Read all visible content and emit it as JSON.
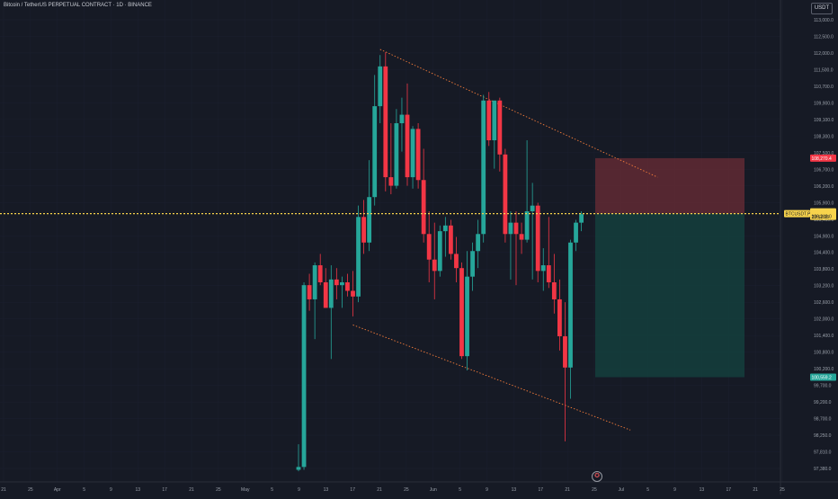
{
  "header": {
    "title": "Bitcoin / TetherUS PERPETUAL CONTRACT · 1D · BINANCE",
    "currency": "USDT"
  },
  "price_tags": {
    "stop": "108,270.4",
    "ticker": "BTCUSDT.P",
    "current_price": "106,318.0",
    "countdown": "23:52:03",
    "target": "100,559.2"
  },
  "colors": {
    "background": "#161a25",
    "up": "#26a69a",
    "down": "#f23645",
    "trendline": "#f57c3a",
    "price_line": "#f7d34c",
    "stop_zone": "#6b2c36",
    "target_zone": "#14403d"
  },
  "chart_data": {
    "type": "candlestick",
    "timeframe": "1D",
    "y_axis": {
      "ylim": [
        97000,
        113300
      ],
      "tick_labels": [
        "113,000.0",
        "112,500.0",
        "112,000.0",
        "111,500.0",
        "110,700.0",
        "109,900.0",
        "109,100.0",
        "108,300.0",
        "107,500.0",
        "106,700.0",
        "106,200.0",
        "105,900.0",
        "105,400.0",
        "104,900.0",
        "104,400.0",
        "103,800.0",
        "103,200.0",
        "102,600.0",
        "102,000.0",
        "101,400.0",
        "100,800.0",
        "100,200.0",
        "99,700.0",
        "99,200.0",
        "98,700.0",
        "98,250.0",
        "97,810.0",
        "97,380.0"
      ]
    },
    "x_axis": {
      "tick_labels": [
        "21",
        "25",
        "Apr",
        "5",
        "9",
        "13",
        "17",
        "21",
        "25",
        "May",
        "5",
        "9",
        "13",
        "17",
        "21",
        "25",
        "Jun",
        "5",
        "9",
        "13",
        "17",
        "21",
        "25",
        "Jul",
        "5",
        "9",
        "13",
        "17",
        "21",
        "25"
      ]
    },
    "candles": [
      {
        "o": 97300,
        "h": 98200,
        "l": 97250,
        "c": 97400
      },
      {
        "o": 97400,
        "h": 103900,
        "l": 97300,
        "c": 103800
      },
      {
        "o": 103800,
        "h": 104200,
        "l": 102900,
        "c": 103300
      },
      {
        "o": 103300,
        "h": 104600,
        "l": 101900,
        "c": 104500
      },
      {
        "o": 104500,
        "h": 104900,
        "l": 103800,
        "c": 103900
      },
      {
        "o": 103900,
        "h": 104400,
        "l": 103000,
        "c": 103000
      },
      {
        "o": 103000,
        "h": 104500,
        "l": 101200,
        "c": 104000
      },
      {
        "o": 104000,
        "h": 104400,
        "l": 103300,
        "c": 103800
      },
      {
        "o": 103800,
        "h": 104100,
        "l": 103000,
        "c": 103900
      },
      {
        "o": 103900,
        "h": 104200,
        "l": 103400,
        "c": 103600
      },
      {
        "o": 103600,
        "h": 104300,
        "l": 102700,
        "c": 103400
      },
      {
        "o": 103400,
        "h": 106600,
        "l": 103200,
        "c": 106200
      },
      {
        "o": 106200,
        "h": 106800,
        "l": 104900,
        "c": 105300
      },
      {
        "o": 105300,
        "h": 108200,
        "l": 105000,
        "c": 106900
      },
      {
        "o": 106900,
        "h": 111200,
        "l": 106600,
        "c": 110100
      },
      {
        "o": 110100,
        "h": 111900,
        "l": 109500,
        "c": 111500
      },
      {
        "o": 111500,
        "h": 112000,
        "l": 107100,
        "c": 107600
      },
      {
        "o": 107600,
        "h": 109500,
        "l": 107000,
        "c": 107300
      },
      {
        "o": 107300,
        "h": 110000,
        "l": 107200,
        "c": 109500
      },
      {
        "o": 109500,
        "h": 110400,
        "l": 108500,
        "c": 109800
      },
      {
        "o": 109800,
        "h": 110900,
        "l": 107300,
        "c": 107600
      },
      {
        "o": 107600,
        "h": 109400,
        "l": 107200,
        "c": 109300
      },
      {
        "o": 109300,
        "h": 109500,
        "l": 107200,
        "c": 107500
      },
      {
        "o": 107500,
        "h": 108600,
        "l": 105300,
        "c": 105600
      },
      {
        "o": 105600,
        "h": 106400,
        "l": 103900,
        "c": 104700
      },
      {
        "o": 104700,
        "h": 106000,
        "l": 103300,
        "c": 104300
      },
      {
        "o": 104300,
        "h": 105900,
        "l": 104100,
        "c": 105700
      },
      {
        "o": 105700,
        "h": 106200,
        "l": 104800,
        "c": 105900
      },
      {
        "o": 105900,
        "h": 106100,
        "l": 104700,
        "c": 104900
      },
      {
        "o": 104900,
        "h": 105500,
        "l": 103900,
        "c": 104400
      },
      {
        "o": 104400,
        "h": 104600,
        "l": 101200,
        "c": 101300
      },
      {
        "o": 101300,
        "h": 105000,
        "l": 100800,
        "c": 104100
      },
      {
        "o": 104100,
        "h": 105300,
        "l": 103600,
        "c": 105000
      },
      {
        "o": 105000,
        "h": 106100,
        "l": 104400,
        "c": 105600
      },
      {
        "o": 105600,
        "h": 110500,
        "l": 105300,
        "c": 110300
      },
      {
        "o": 110300,
        "h": 110600,
        "l": 108700,
        "c": 108900
      },
      {
        "o": 108900,
        "h": 110200,
        "l": 107900,
        "c": 110300
      },
      {
        "o": 110300,
        "h": 110400,
        "l": 107800,
        "c": 108400
      },
      {
        "o": 108400,
        "h": 108600,
        "l": 105300,
        "c": 105600
      },
      {
        "o": 105600,
        "h": 106400,
        "l": 104000,
        "c": 106000
      },
      {
        "o": 106000,
        "h": 106400,
        "l": 103800,
        "c": 105600
      },
      {
        "o": 105600,
        "h": 106000,
        "l": 104900,
        "c": 105400
      },
      {
        "o": 105400,
        "h": 108900,
        "l": 105300,
        "c": 106400
      },
      {
        "o": 106400,
        "h": 107400,
        "l": 104000,
        "c": 106600
      },
      {
        "o": 106600,
        "h": 106700,
        "l": 103900,
        "c": 104300
      },
      {
        "o": 104300,
        "h": 105100,
        "l": 103600,
        "c": 104500
      },
      {
        "o": 104500,
        "h": 106200,
        "l": 103700,
        "c": 103900
      },
      {
        "o": 103900,
        "h": 104900,
        "l": 102800,
        "c": 103300
      },
      {
        "o": 103300,
        "h": 104000,
        "l": 101500,
        "c": 102000
      },
      {
        "o": 102000,
        "h": 103200,
        "l": 98300,
        "c": 100900
      },
      {
        "o": 100900,
        "h": 105400,
        "l": 99800,
        "c": 105300
      },
      {
        "o": 105300,
        "h": 106100,
        "l": 105000,
        "c": 106000
      },
      {
        "o": 106000,
        "h": 106400,
        "l": 105700,
        "c": 106300
      }
    ],
    "trendlines": [
      {
        "points": [
          {
            "i": 15,
            "v": 112100
          },
          {
            "i": 66,
            "v": 107600
          }
        ]
      },
      {
        "points": [
          {
            "i": 10,
            "v": 102400
          },
          {
            "i": 61,
            "v": 98700
          }
        ]
      }
    ],
    "current_price": 106318.0,
    "position": {
      "entry": 106318.0,
      "stop": 108270.4,
      "target": 100559.2
    }
  }
}
